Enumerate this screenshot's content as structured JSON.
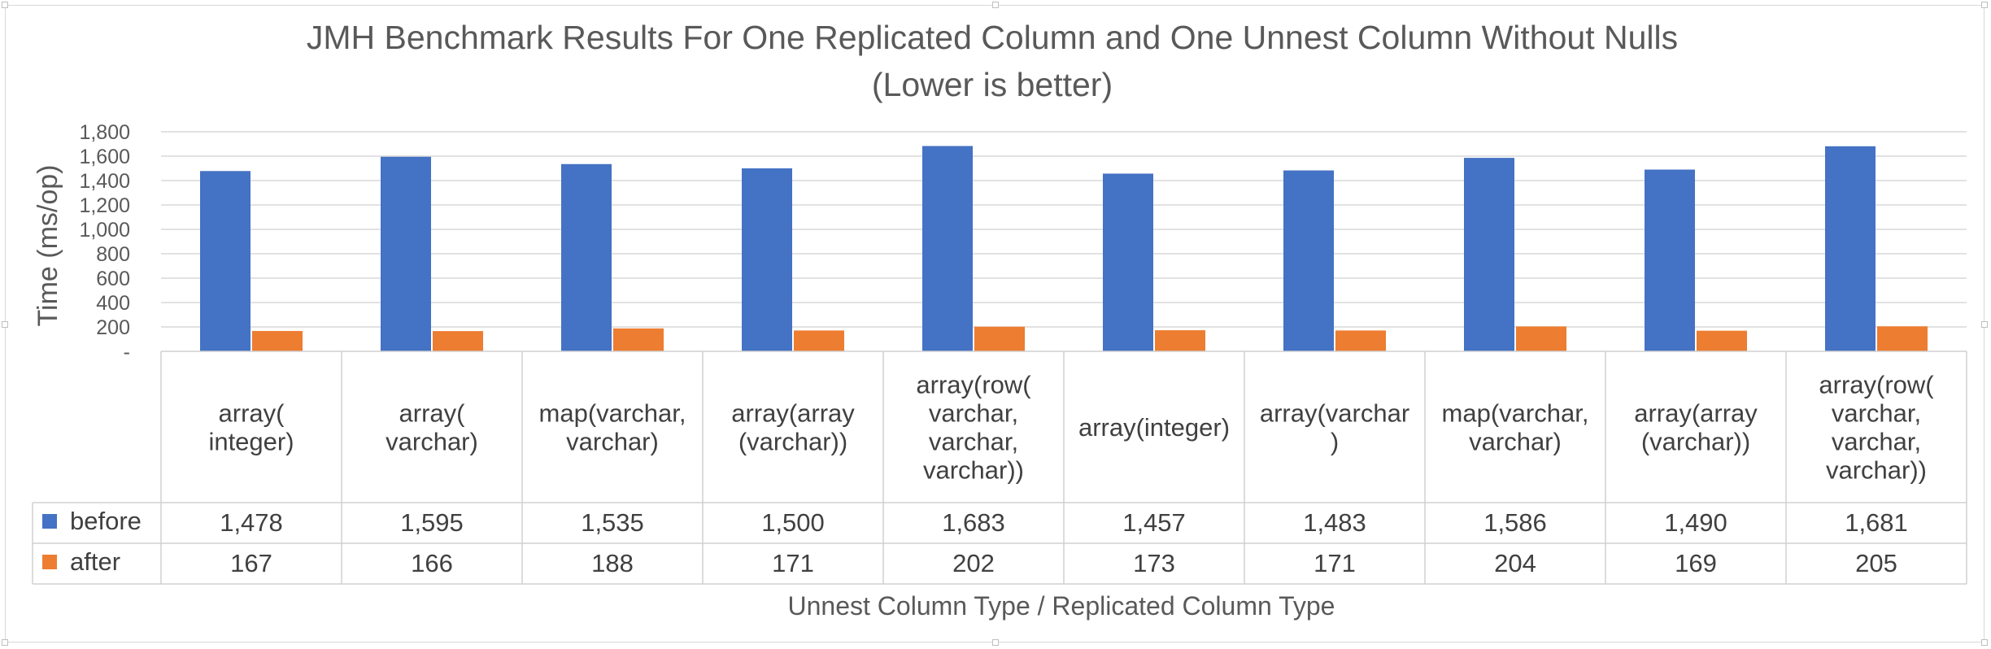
{
  "chart_data": {
    "type": "bar",
    "title": "JMH Benchmark Results For One Replicated Column and One Unnest Column Without Nulls",
    "subtitle": "(Lower is better)",
    "ylabel": "Time (ms/op)",
    "xlabel": "Unnest Column Type /  Replicated Column Type",
    "ylim": [
      0,
      1800
    ],
    "y_ticks": [
      "-",
      "200",
      "400",
      "600",
      "800",
      "1,000",
      "1,200",
      "1,400",
      "1,600",
      "1,800"
    ],
    "grid": true,
    "legend": "data-table",
    "categories": [
      [
        "array(",
        "integer)"
      ],
      [
        "array(",
        "varchar)"
      ],
      [
        "map(varchar,",
        "varchar)"
      ],
      [
        "array(array",
        "(varchar))"
      ],
      [
        "array(row(",
        "varchar,",
        "varchar,",
        "varchar))"
      ],
      [
        "array(integer)"
      ],
      [
        "array(varchar",
        ")"
      ],
      [
        "map(varchar,",
        "varchar)"
      ],
      [
        "array(array",
        "(varchar))"
      ],
      [
        "array(row(",
        "varchar,",
        "varchar,",
        "varchar))"
      ]
    ],
    "series": [
      {
        "name": "before",
        "color": "#4472c4",
        "values": [
          1478,
          1595,
          1535,
          1500,
          1683,
          1457,
          1483,
          1586,
          1490,
          1681
        ],
        "labels": [
          "1,478",
          "1,595",
          "1,535",
          "1,500",
          "1,683",
          "1,457",
          "1,483",
          "1,586",
          "1,490",
          "1,681"
        ]
      },
      {
        "name": "after",
        "color": "#ed7d31",
        "values": [
          167,
          166,
          188,
          171,
          202,
          173,
          171,
          204,
          169,
          205
        ],
        "labels": [
          "167",
          "166",
          "188",
          "171",
          "202",
          "173",
          "171",
          "204",
          "169",
          "205"
        ]
      }
    ]
  }
}
